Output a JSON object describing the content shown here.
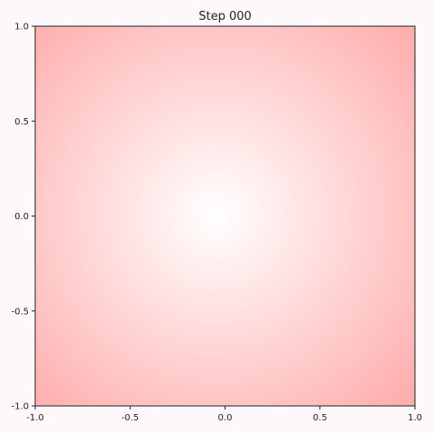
{
  "chart_data": {
    "type": "heatmap",
    "title": "Step 000",
    "xlabel": "",
    "ylabel": "",
    "xlim": [
      -1.0,
      1.0
    ],
    "ylim": [
      -1.0,
      1.0
    ],
    "x_ticks": [
      -1.0,
      -0.5,
      0.0,
      0.5,
      1.0
    ],
    "y_ticks": [
      -1.0,
      -0.5,
      0.0,
      0.5,
      1.0
    ],
    "x_tick_labels": [
      "-1.0",
      "-0.5",
      "0.0",
      "0.5",
      "1.0"
    ],
    "y_tick_labels": [
      "-1.0",
      "-0.5",
      "0.0",
      "0.5",
      "1.0"
    ],
    "grid": false,
    "colormap": {
      "low": "#ffffff",
      "high": "#ffacac"
    },
    "field": {
      "description_type": "radial",
      "center": [
        0.0,
        0.0
      ],
      "value_at_center": 0.0,
      "value_at_corner": 1.0
    }
  },
  "colors": {
    "figure_background": "#fdf8fa",
    "axes_frame": "#222222"
  }
}
